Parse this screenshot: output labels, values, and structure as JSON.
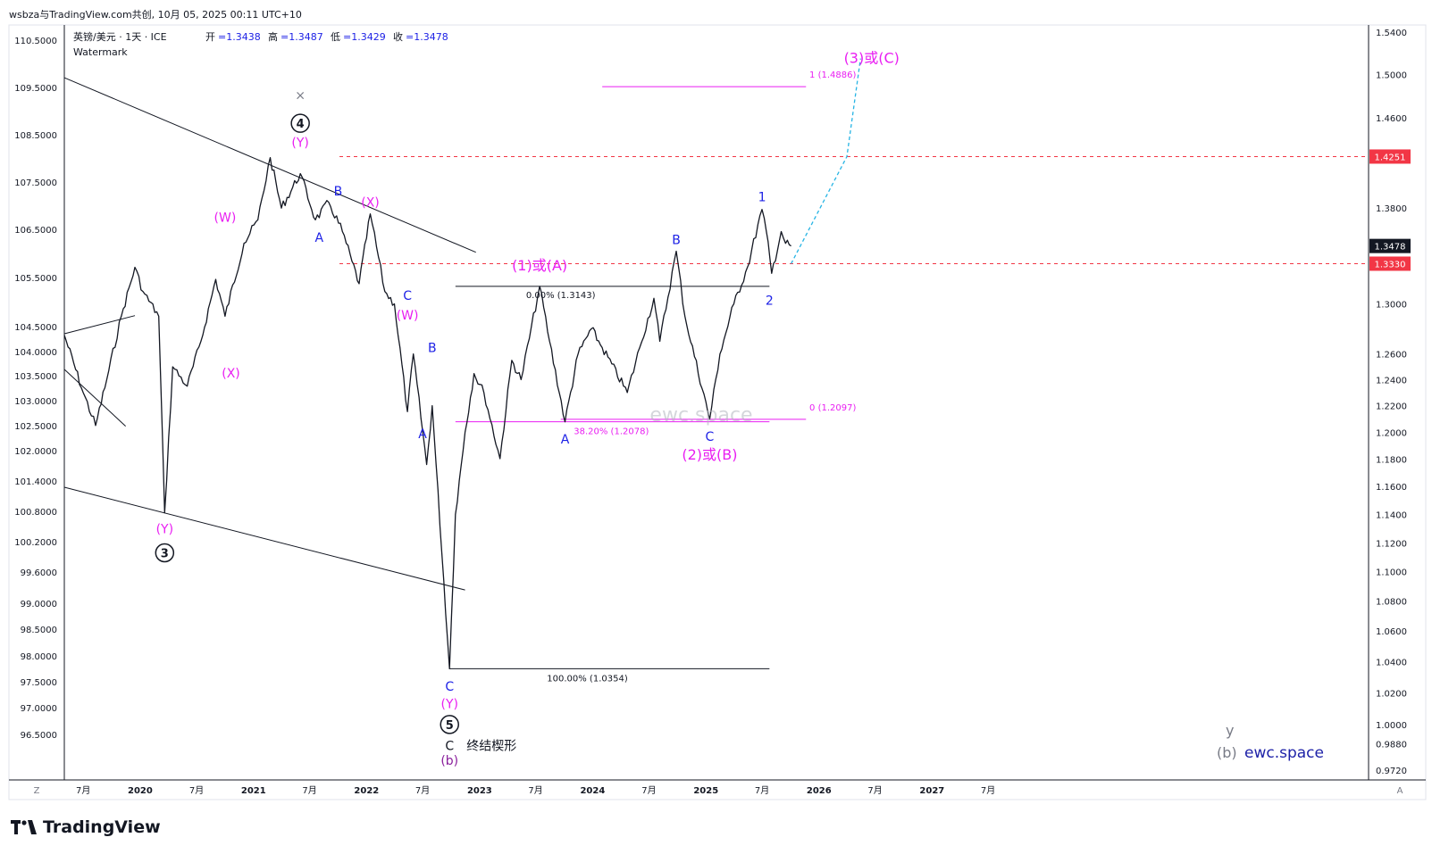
{
  "page_title": "wsbza与TradingView.com共创, 10月 05, 2025 00:11 UTC+10",
  "header": {
    "symbol": "英镑/美元 · 1天 · ICE",
    "open_label": "开",
    "open_value": "=1.3438",
    "high_label": "高",
    "high_value": "=1.3487",
    "low_label": "低",
    "low_value": "=1.3429",
    "close_label": "收",
    "close_value": "=1.3478",
    "watermark": "Watermark"
  },
  "footer": {
    "brand": "TradingView",
    "brand_site": "ewc.space",
    "brand_prefix_y": "y",
    "brand_prefix_b": "(b)"
  },
  "colors": {
    "price": "#131722",
    "magenta": "#e91ef2",
    "blue": "#1e22e6",
    "red_dash": "#f23645",
    "cyan": "#26b4e4",
    "axis_badge": "#131722",
    "red_badge": "#f23645"
  },
  "chart_data": {
    "type": "line",
    "title": "英镑/美元 · 1天 · ICE",
    "x_axis": {
      "tick_labels": [
        "7月",
        "2020",
        "7月",
        "2021",
        "7月",
        "2022",
        "7月",
        "2023",
        "7月",
        "2024",
        "7月",
        "2025",
        "7月",
        "2026",
        "7月",
        "2027",
        "7月"
      ],
      "corner_left": "Z",
      "corner_right": "A"
    },
    "left_axis": {
      "tick_labels": [
        "110.5000",
        "109.5000",
        "108.5000",
        "107.5000",
        "106.5000",
        "105.5000",
        "104.5000",
        "104.0000",
        "103.5000",
        "103.0000",
        "102.5000",
        "102.0000",
        "101.4000",
        "100.8000",
        "100.2000",
        "99.6000",
        "99.0000",
        "98.5000",
        "98.0000",
        "97.5000",
        "97.0000",
        "96.5000"
      ]
    },
    "right_axis": {
      "tick_labels": [
        "1.5400",
        "1.5000",
        "1.4600",
        "1.3800",
        "1.3000",
        "1.2600",
        "1.2400",
        "1.2200",
        "1.2000",
        "1.1800",
        "1.1600",
        "1.1400",
        "1.1200",
        "1.1000",
        "1.0800",
        "1.0600",
        "1.0400",
        "1.0200",
        "1.0000",
        "0.9880",
        "0.9720"
      ],
      "ylim": [
        0.966,
        1.547
      ],
      "scale": "log",
      "badges": [
        {
          "label": "1.4251",
          "value": 1.4251,
          "color": "#f23645"
        },
        {
          "label": "1.3478",
          "value": 1.3478,
          "color": "#131722"
        },
        {
          "label": "1.3330",
          "value": 1.333,
          "color": "#f23645"
        }
      ]
    },
    "price_path": {
      "series_name": "",
      "x": [
        "2019-05-01",
        "2019-07-01",
        "2019-08-10",
        "2019-09-15",
        "2019-11-01",
        "2019-12-15",
        "2020-01-10",
        "2020-03-01",
        "2020-03-20",
        "2020-04-15",
        "2020-06-01",
        "2020-07-15",
        "2020-09-01",
        "2020-10-01",
        "2020-12-01",
        "2021-01-15",
        "2021-02-24",
        "2021-04-01",
        "2021-06-01",
        "2021-07-20",
        "2021-09-01",
        "2021-10-15",
        "2021-11-15",
        "2021-12-08",
        "2022-01-13",
        "2022-03-01",
        "2022-04-01",
        "2022-05-13",
        "2022-06-01",
        "2022-07-14",
        "2022-08-01",
        "2022-09-26",
        "2022-10-15",
        "2022-11-15",
        "2022-12-14",
        "2023-01-15",
        "2023-03-08",
        "2023-04-15",
        "2023-05-15",
        "2023-07-14",
        "2023-08-15",
        "2023-10-04",
        "2023-11-15",
        "2023-12-28",
        "2024-02-01",
        "2024-04-22",
        "2024-06-01",
        "2024-07-17",
        "2024-08-05",
        "2024-09-27",
        "2024-10-25",
        "2025-01-13",
        "2025-02-15",
        "2025-04-01",
        "2025-05-15",
        "2025-07-01",
        "2025-07-15",
        "2025-08-01",
        "2025-09-01",
        "2025-09-15",
        "2025-10-03"
      ],
      "y": [
        1.275,
        1.23,
        1.205,
        1.24,
        1.29,
        1.33,
        1.31,
        1.29,
        1.1412,
        1.25,
        1.235,
        1.27,
        1.32,
        1.29,
        1.35,
        1.37,
        1.4242,
        1.38,
        1.41,
        1.37,
        1.385,
        1.36,
        1.335,
        1.3165,
        1.375,
        1.31,
        1.3,
        1.2155,
        1.26,
        1.176,
        1.22,
        1.0354,
        1.14,
        1.2,
        1.2447,
        1.23,
        1.1803,
        1.255,
        1.24,
        1.3143,
        1.27,
        1.2078,
        1.26,
        1.28,
        1.265,
        1.23,
        1.265,
        1.3045,
        1.27,
        1.3434,
        1.29,
        1.2097,
        1.26,
        1.3,
        1.33,
        1.3789,
        1.36,
        1.325,
        1.36,
        1.35,
        1.3478
      ]
    },
    "fib_levels": [
      {
        "label": "0.00% (1.3143)",
        "value": 1.3143
      },
      {
        "label": "38.20% (1.2078)",
        "value": 1.2078
      },
      {
        "label": "100.00% (1.0354)",
        "value": 1.0354
      },
      {
        "label": "0 (1.2097)",
        "value": 1.2097
      },
      {
        "label": "1 (1.4886)",
        "value": 1.4886
      }
    ],
    "horizontal_lines": [
      {
        "value": 1.4251,
        "style": "dashed",
        "color": "#f23645"
      },
      {
        "value": 1.333,
        "style": "dashed",
        "color": "#f23645"
      }
    ],
    "projection": {
      "x": [
        "2025-10-03",
        "2026-04-01",
        "2026-05-15"
      ],
      "y": [
        1.333,
        1.4251,
        1.515
      ],
      "color": "#26b4e4"
    },
    "wave_labels": [
      {
        "text": "(W)",
        "color": "#e91ef2",
        "x": "2020-10-01",
        "y": 1.372
      },
      {
        "text": "(X)",
        "color": "#e91ef2",
        "x": "2020-10-20",
        "y": 1.245
      },
      {
        "text": "(Y)",
        "color": "#e91ef2",
        "x": "2020-03-20",
        "y": 1.13
      },
      {
        "text": "3",
        "color": "#131722",
        "circle": true,
        "x": "2020-03-20",
        "y": 1.113
      },
      {
        "text": "(Y)",
        "color": "#e91ef2",
        "x": "2021-06-01",
        "y": 1.438
      },
      {
        "text": "4",
        "color": "#131722",
        "circle": true,
        "x": "2021-06-01",
        "y": 1.455
      },
      {
        "text": "×",
        "color": "#787b86",
        "x": "2021-06-01",
        "y": 1.481
      },
      {
        "text": "A",
        "color": "#1e22e6",
        "x": "2021-08-01",
        "y": 1.355
      },
      {
        "text": "B",
        "color": "#1e22e6",
        "x": "2021-10-01",
        "y": 1.395
      },
      {
        "text": "(X)",
        "color": "#e91ef2",
        "x": "2022-01-13",
        "y": 1.385
      },
      {
        "text": "C",
        "color": "#1e22e6",
        "x": "2022-05-13",
        "y": 1.307
      },
      {
        "text": "(W)",
        "color": "#e91ef2",
        "x": "2022-05-13",
        "y": 1.291
      },
      {
        "text": "B",
        "color": "#1e22e6",
        "x": "2022-08-01",
        "y": 1.265
      },
      {
        "text": "A",
        "color": "#1e22e6",
        "x": "2022-07-01",
        "y": 1.199
      },
      {
        "text": "C",
        "color": "#1e22e6",
        "x": "2022-09-26",
        "y": 1.024
      },
      {
        "text": "(Y)",
        "color": "#e91ef2",
        "x": "2022-09-26",
        "y": 1.013
      },
      {
        "text": "5",
        "color": "#131722",
        "circle": true,
        "x": "2022-09-26",
        "y": 1.0
      },
      {
        "text": "C",
        "color": "#131722",
        "x": "2022-09-26",
        "y": 0.987
      },
      {
        "text": "终结楔形",
        "color": "#131722",
        "x": "2022-11-20",
        "y": 0.987
      },
      {
        "text": "(b)",
        "color": "#8a1f9c",
        "x": "2022-09-26",
        "y": 0.978
      },
      {
        "text": "(1)或(A)",
        "color": "#e91ef2",
        "x": "2023-07-14",
        "y": 1.331
      },
      {
        "text": "A",
        "color": "#1e22e6",
        "x": "2023-10-04",
        "y": 1.195
      },
      {
        "text": "B",
        "color": "#1e22e6",
        "x": "2024-09-27",
        "y": 1.353
      },
      {
        "text": "C",
        "color": "#1e22e6",
        "x": "2025-01-13",
        "y": 1.197
      },
      {
        "text": "(2)或(B)",
        "color": "#e91ef2",
        "x": "2025-01-13",
        "y": 1.183
      },
      {
        "text": "1",
        "color": "#1e22e6",
        "x": "2025-07-01",
        "y": 1.39
      },
      {
        "text": "2",
        "color": "#1e22e6",
        "x": "2025-07-25",
        "y": 1.303
      },
      {
        "text": "(3)或(C)",
        "color": "#e91ef2",
        "x": "2026-06-20",
        "y": 1.515
      }
    ],
    "trendlines": [
      {
        "x1": "2019-05-01",
        "y1": 1.497,
        "x2": "2022-12-20",
        "y2": 1.3425
      },
      {
        "x1": "2019-05-01",
        "y1": 1.1595,
        "x2": "2022-11-15",
        "y2": 1.0875
      },
      {
        "x1": "2019-05-01",
        "y1": 1.276,
        "x2": "2019-12-15",
        "y2": 1.2905
      },
      {
        "x1": "2019-05-01",
        "y1": 1.248,
        "x2": "2019-11-15",
        "y2": 1.2045
      }
    ],
    "watermark_text": "ewc.space",
    "grid": false
  }
}
